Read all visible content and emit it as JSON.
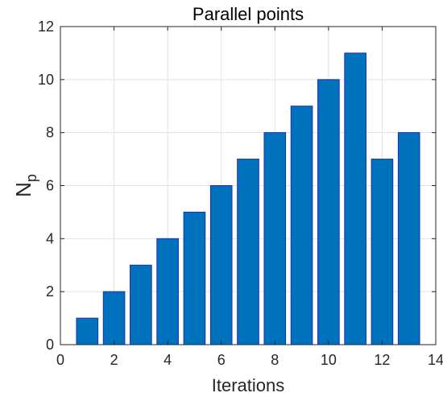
{
  "chart_data": {
    "type": "bar",
    "title": "Parallel points",
    "xlabel": "Iterations",
    "ylabel": {
      "main": "N",
      "subscript": "p"
    },
    "x": [
      1,
      2,
      3,
      4,
      5,
      6,
      7,
      8,
      9,
      10,
      11,
      12,
      13
    ],
    "values": [
      1,
      2,
      3,
      4,
      5,
      6,
      7,
      8,
      9,
      10,
      11,
      7,
      8
    ],
    "xlim": [
      0,
      14
    ],
    "ylim": [
      0,
      12
    ],
    "xticks": [
      0,
      2,
      4,
      6,
      8,
      10,
      12,
      14
    ],
    "yticks": [
      0,
      2,
      4,
      6,
      8,
      10,
      12
    ],
    "grid": true,
    "bar_color": "#0072BD",
    "bar_edge_color": "#1a2fb0"
  }
}
